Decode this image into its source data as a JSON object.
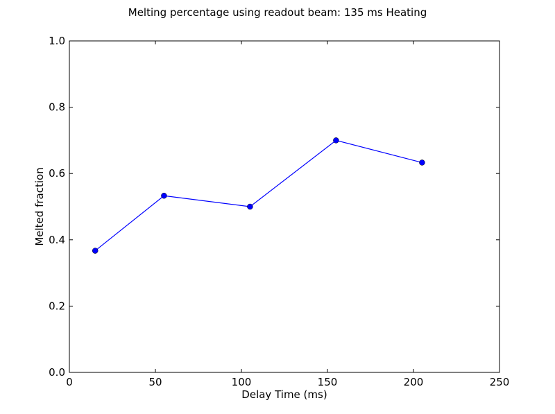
{
  "chart_data": {
    "type": "line",
    "title": "Melting percentage using readout beam: 135 ms Heating",
    "xlabel": "Delay Time (ms)",
    "ylabel": "Melted fraction",
    "xlim": [
      0,
      250
    ],
    "ylim": [
      0.0,
      1.0
    ],
    "xticks": [
      "0",
      "50",
      "100",
      "150",
      "200",
      "250"
    ],
    "yticks": [
      "0.0",
      "0.2",
      "0.4",
      "0.6",
      "0.8",
      "1.0"
    ],
    "grid": false,
    "series": [
      {
        "x": [
          15,
          55,
          105,
          155,
          205
        ],
        "y": [
          0.367,
          0.533,
          0.5,
          0.7,
          0.633
        ],
        "color": "#0000ff",
        "marker": "circle"
      }
    ]
  }
}
